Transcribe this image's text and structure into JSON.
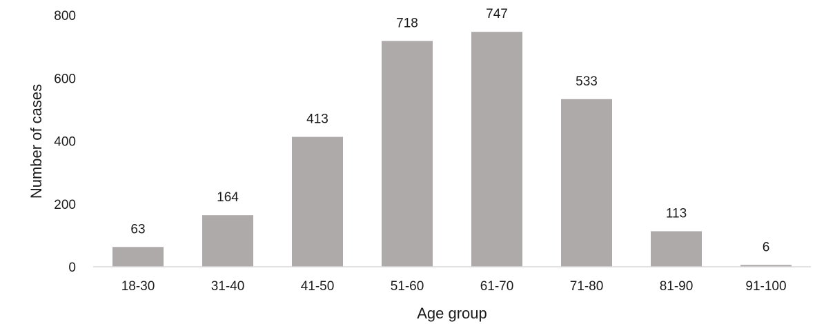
{
  "chart_data": {
    "type": "bar",
    "categories": [
      "18-30",
      "31-40",
      "41-50",
      "51-60",
      "61-70",
      "71-80",
      "81-90",
      "91-100"
    ],
    "values": [
      63,
      164,
      413,
      718,
      747,
      533,
      113,
      6
    ],
    "data_labels": [
      "63",
      "164",
      "413",
      "718",
      "747",
      "533",
      "113",
      "6"
    ],
    "title": "",
    "xlabel": "Age group",
    "ylabel": "Number of cases",
    "ylim": [
      0,
      800
    ],
    "yticks": [
      0,
      200,
      400,
      600,
      800
    ],
    "ytick_labels": [
      "0",
      "200",
      "400",
      "600",
      "800"
    ],
    "grid": false,
    "legend": "none",
    "colors": {
      "bar": "#aeaaaa",
      "axis": "#d9d9d9",
      "text": "#1a1a1a"
    }
  }
}
